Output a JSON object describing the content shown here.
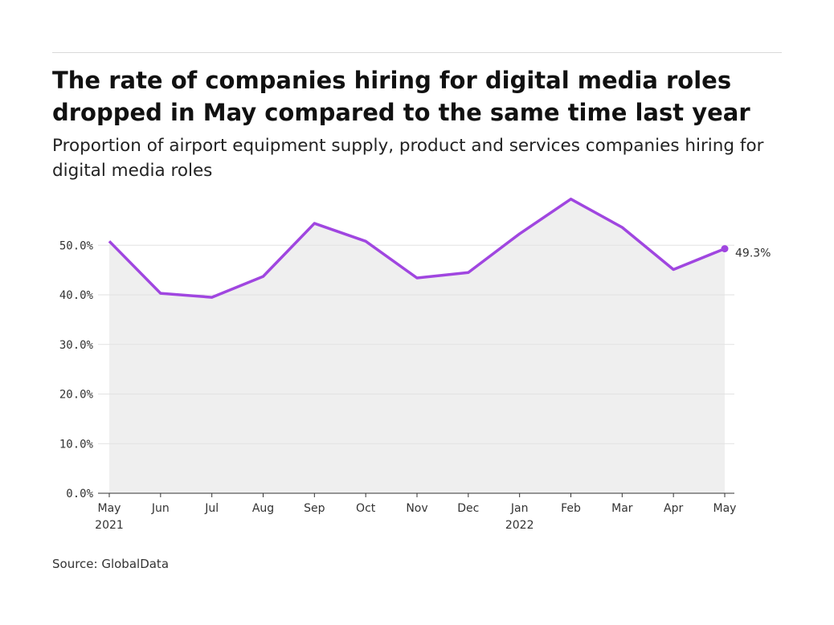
{
  "title": "The rate of companies hiring for digital media roles dropped in May compared to the same time last year",
  "subtitle": "Proportion of airport equipment supply, product and services companies hiring for digital media roles",
  "source": "Source: GlobalData",
  "colors": {
    "line": "#a046e0",
    "area": "#efefef",
    "grid": "#e2e2e2"
  },
  "chart_data": {
    "type": "area",
    "title": "The rate of companies hiring for digital media roles dropped in May compared to the same time last year",
    "xlabel": "",
    "ylabel": "",
    "categories": [
      "May",
      "Jun",
      "Jul",
      "Aug",
      "Sep",
      "Oct",
      "Nov",
      "Dec",
      "Jan",
      "Feb",
      "Mar",
      "Apr",
      "May"
    ],
    "year_labels": {
      "0": "2021",
      "8": "2022"
    },
    "values": [
      50.8,
      40.3,
      39.5,
      43.7,
      54.4,
      50.8,
      43.4,
      44.5,
      52.3,
      59.3,
      53.6,
      45.1,
      49.3
    ],
    "ylim": [
      0,
      60
    ],
    "yticks": [
      0,
      10,
      20,
      30,
      40,
      50
    ],
    "ytick_labels": [
      "0.0%",
      "10.0%",
      "20.0%",
      "30.0%",
      "40.0%",
      "50.0%"
    ],
    "end_label": "49.3%",
    "grid": true
  }
}
